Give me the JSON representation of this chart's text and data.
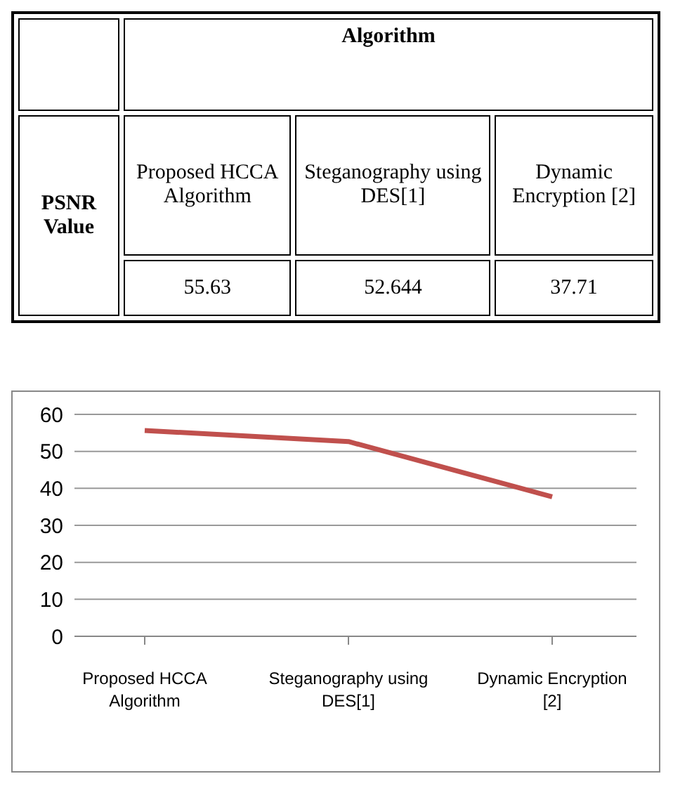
{
  "chart_data": {
    "type": "line",
    "annotations": [
      "Algorithm",
      "PSNR Value"
    ],
    "categories": [
      "Proposed HCCA Algorithm",
      "Steganography using DES[1]",
      "Dynamic Encryption [2]"
    ],
    "series": [
      {
        "color": "#c0504d",
        "values": [
          55.63,
          52.644,
          37.71
        ]
      }
    ],
    "ylim": [
      0,
      60
    ],
    "yticks": [
      0,
      10,
      20,
      30,
      40,
      50,
      60
    ],
    "grid": "y",
    "legend": false,
    "marker": "none",
    "line_style": "solid",
    "data_labels": true
  }
}
